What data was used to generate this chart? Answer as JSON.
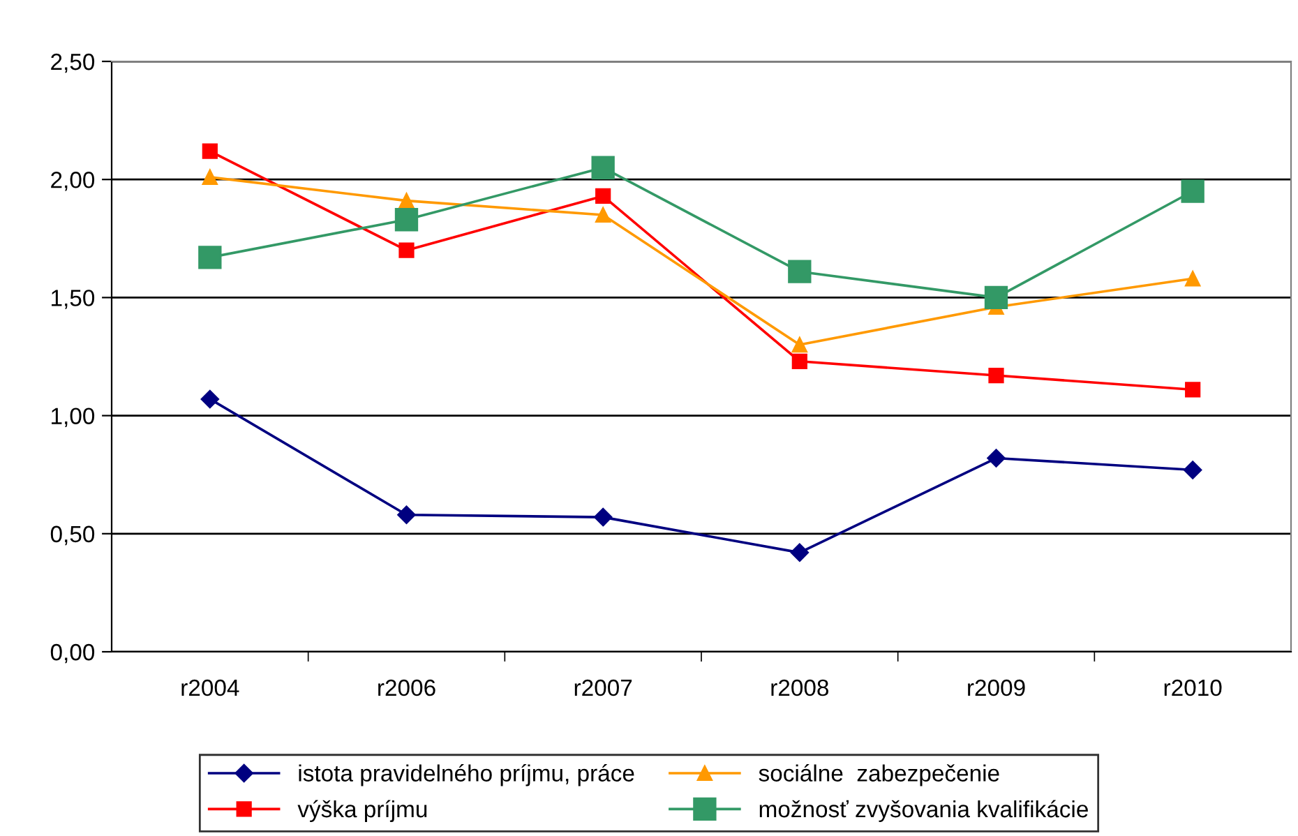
{
  "chart_data": {
    "type": "line",
    "categories": [
      "r2004",
      "r2006",
      "r2007",
      "r2008",
      "r2009",
      "r2010"
    ],
    "series": [
      {
        "name": "istota pravidelného príjmu, práce",
        "color": "#000080",
        "marker": "diamond",
        "values": [
          1.07,
          0.58,
          0.57,
          0.42,
          0.82,
          0.77
        ]
      },
      {
        "name": "výška príjmu",
        "color": "#ff0000",
        "marker": "square",
        "values": [
          2.12,
          1.7,
          1.93,
          1.23,
          1.17,
          1.11
        ]
      },
      {
        "name": "sociálne  zabezpečenie",
        "color": "#ff9900",
        "marker": "triangle",
        "values": [
          2.01,
          1.91,
          1.85,
          1.3,
          1.46,
          1.58
        ]
      },
      {
        "name": "možnosť zvyšovania kvalifikácie",
        "color": "#339966",
        "marker": "square",
        "values": [
          1.67,
          1.83,
          2.05,
          1.61,
          1.5,
          1.95
        ]
      }
    ],
    "ylim": [
      0,
      2.5
    ],
    "yticks": [
      {
        "value": 0,
        "label": "0,00"
      },
      {
        "value": 0.5,
        "label": "0,50"
      },
      {
        "value": 1,
        "label": "1,00"
      },
      {
        "value": 1.5,
        "label": "1,50"
      },
      {
        "value": 2,
        "label": "2,00"
      },
      {
        "value": 2.5,
        "label": "2,50"
      }
    ],
    "grid": "y",
    "legend": "bottom"
  }
}
